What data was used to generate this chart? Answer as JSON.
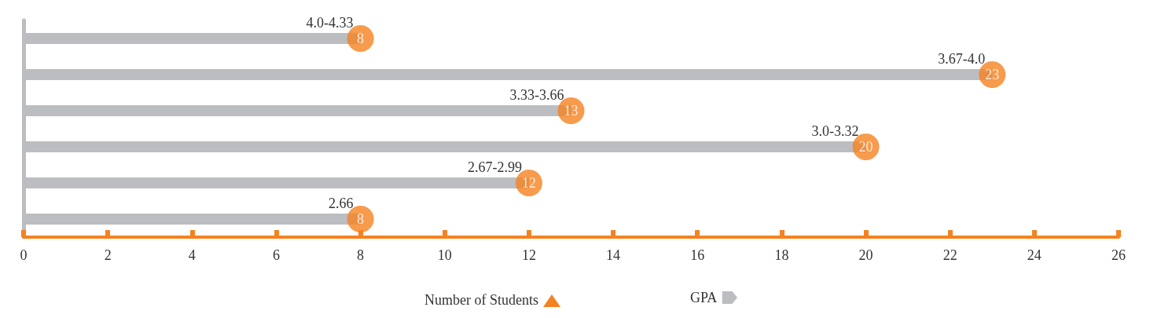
{
  "chart_data": {
    "type": "bar",
    "orientation": "horizontal",
    "xlabel": "Number of Students",
    "categories": [
      "4.0-4.33",
      "3.67-4.0",
      "3.33-3.66",
      "3.0-3.32",
      "2.67-2.99",
      "2.66"
    ],
    "series": [
      {
        "name": "GPA",
        "color": "#bcbdc0",
        "values": [
          8,
          23,
          13,
          20,
          12,
          8
        ]
      }
    ],
    "data_labels": true,
    "xlim": [
      0,
      26
    ],
    "xticks": [
      0,
      2,
      4,
      6,
      8,
      10,
      12,
      14,
      16,
      18,
      20,
      22,
      24,
      26
    ],
    "grid": false,
    "legend": "bottom"
  }
}
